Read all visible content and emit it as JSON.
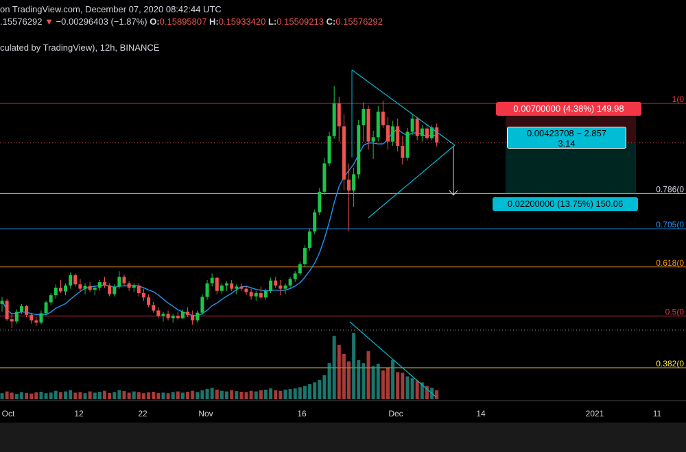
{
  "header": {
    "line1": "on TradingView.com, December 07, 2020 08:42:44 UTC",
    "price": ".15576292",
    "change": "−0.00296403 (−1.87%)",
    "o_label": "O:",
    "o_value": "0.15895807",
    "h_label": "H:",
    "h_value": "0.15933420",
    "l_label": "L:",
    "l_value": "0.15509213",
    "c_label": "C:",
    "c_value": "0.15576292",
    "line3": "culated by TradingView), 12h, BINANCE"
  },
  "position": {
    "stop_label": "0.00700000 (4.38%) 149.98",
    "rr_line1": "0.00423708 ~ 2.857",
    "rr_line2": "3.14",
    "target_label": "0.02200000 (13.75%) 150.06"
  },
  "fib_levels": [
    {
      "label": "1(0",
      "price": 0.163,
      "color": "#f23645"
    },
    {
      "label": "0.786(0",
      "price": 0.1465,
      "color": "#d1d4dc"
    },
    {
      "label": "0.705(0",
      "price": 0.14,
      "color": "#2196f3"
    },
    {
      "label": "0.618(0",
      "price": 0.133,
      "color": "#ff9800"
    },
    {
      "label": "0.5(0",
      "price": 0.124,
      "color": "#f23645"
    },
    {
      "label": "0.382(0",
      "price": 0.1145,
      "color": "#ffeb3b"
    }
  ],
  "colors": {
    "up": "#26a69a",
    "up_candle": "#1bc44a",
    "down": "#ef5350",
    "ma": "#2196f3",
    "triangle": "#00bcd4"
  },
  "chart_data": {
    "type": "candlestick",
    "interval": "12h",
    "exchange": "BINANCE",
    "x_ticks": [
      "Oct",
      "12",
      "22",
      "Nov",
      "16",
      "Dec",
      "14",
      "2021",
      "11"
    ],
    "y_range": [
      0.11,
      0.17
    ],
    "current_price": 0.15576292,
    "series": [
      {
        "name": "candles",
        "ohlc": [
          [
            0.1262,
            0.1275,
            0.1248,
            0.1268
          ],
          [
            0.1268,
            0.1272,
            0.1231,
            0.1234
          ],
          [
            0.1234,
            0.1244,
            0.1218,
            0.123
          ],
          [
            0.123,
            0.1252,
            0.1226,
            0.1248
          ],
          [
            0.1248,
            0.1262,
            0.1244,
            0.1258
          ],
          [
            0.1258,
            0.126,
            0.1238,
            0.1242
          ],
          [
            0.1242,
            0.1246,
            0.1226,
            0.1232
          ],
          [
            0.1232,
            0.1238,
            0.1222,
            0.1228
          ],
          [
            0.1228,
            0.125,
            0.1225,
            0.1245
          ],
          [
            0.1245,
            0.1268,
            0.1242,
            0.1265
          ],
          [
            0.1265,
            0.1282,
            0.126,
            0.1278
          ],
          [
            0.1278,
            0.1298,
            0.1272,
            0.1292
          ],
          [
            0.1292,
            0.1306,
            0.1282,
            0.1285
          ],
          [
            0.1285,
            0.13,
            0.1278,
            0.1296
          ],
          [
            0.1296,
            0.132,
            0.129,
            0.1315
          ],
          [
            0.1315,
            0.1318,
            0.1294,
            0.1298
          ],
          [
            0.1298,
            0.1308,
            0.1286,
            0.129
          ],
          [
            0.129,
            0.13,
            0.128,
            0.1295
          ],
          [
            0.1295,
            0.1302,
            0.1284,
            0.1288
          ],
          [
            0.1288,
            0.1296,
            0.1278,
            0.1292
          ],
          [
            0.1292,
            0.1306,
            0.1286,
            0.1302
          ],
          [
            0.1302,
            0.1312,
            0.1292,
            0.1296
          ],
          [
            0.1296,
            0.13,
            0.1276,
            0.128
          ],
          [
            0.128,
            0.1298,
            0.1276,
            0.1294
          ],
          [
            0.1294,
            0.1322,
            0.129,
            0.1312
          ],
          [
            0.1312,
            0.1316,
            0.1296,
            0.13
          ],
          [
            0.13,
            0.1304,
            0.1286,
            0.1292
          ],
          [
            0.1292,
            0.13,
            0.1284,
            0.1296
          ],
          [
            0.1296,
            0.13,
            0.1276,
            0.1282
          ],
          [
            0.1282,
            0.129,
            0.1268,
            0.1274
          ],
          [
            0.1274,
            0.128,
            0.1256,
            0.126
          ],
          [
            0.126,
            0.1266,
            0.1246,
            0.125
          ],
          [
            0.125,
            0.1256,
            0.1236,
            0.124
          ],
          [
            0.124,
            0.1248,
            0.123,
            0.1244
          ],
          [
            0.1244,
            0.125,
            0.1232,
            0.1236
          ],
          [
            0.1236,
            0.1244,
            0.1228,
            0.124
          ],
          [
            0.124,
            0.1248,
            0.1232,
            0.1236
          ],
          [
            0.1236,
            0.1252,
            0.1234,
            0.1248
          ],
          [
            0.1248,
            0.1256,
            0.1238,
            0.1242
          ],
          [
            0.1242,
            0.125,
            0.1224,
            0.1232
          ],
          [
            0.1232,
            0.125,
            0.1228,
            0.1246
          ],
          [
            0.1246,
            0.128,
            0.1242,
            0.1275
          ],
          [
            0.1275,
            0.1306,
            0.127,
            0.13
          ],
          [
            0.13,
            0.1318,
            0.1294,
            0.131
          ],
          [
            0.131,
            0.1312,
            0.128,
            0.1286
          ],
          [
            0.1286,
            0.13,
            0.128,
            0.1296
          ],
          [
            0.1296,
            0.1304,
            0.1286,
            0.13
          ],
          [
            0.13,
            0.1306,
            0.1286,
            0.129
          ],
          [
            0.129,
            0.1298,
            0.128,
            0.1294
          ],
          [
            0.1294,
            0.13,
            0.1286,
            0.129
          ],
          [
            0.129,
            0.1296,
            0.1278,
            0.1284
          ],
          [
            0.1284,
            0.129,
            0.127,
            0.1276
          ],
          [
            0.1276,
            0.1286,
            0.1268,
            0.1282
          ],
          [
            0.1282,
            0.1294,
            0.127,
            0.1274
          ],
          [
            0.1274,
            0.129,
            0.127,
            0.1286
          ],
          [
            0.1286,
            0.131,
            0.1282,
            0.1305
          ],
          [
            0.1305,
            0.1312,
            0.1292,
            0.1296
          ],
          [
            0.1296,
            0.1306,
            0.1278,
            0.129
          ],
          [
            0.129,
            0.13,
            0.128,
            0.1296
          ],
          [
            0.1296,
            0.1312,
            0.1292,
            0.1308
          ],
          [
            0.1308,
            0.1322,
            0.1302,
            0.1318
          ],
          [
            0.1318,
            0.134,
            0.1314,
            0.1335
          ],
          [
            0.1335,
            0.137,
            0.133,
            0.1365
          ],
          [
            0.1365,
            0.14,
            0.136,
            0.1395
          ],
          [
            0.1395,
            0.1435,
            0.139,
            0.143
          ],
          [
            0.143,
            0.1475,
            0.1425,
            0.1468
          ],
          [
            0.1468,
            0.153,
            0.1462,
            0.152
          ],
          [
            0.152,
            0.1578,
            0.1515,
            0.157
          ],
          [
            0.157,
            0.1662,
            0.1565,
            0.163
          ],
          [
            0.163,
            0.1642,
            0.156,
            0.1588
          ],
          [
            0.1588,
            0.161,
            0.147,
            0.149
          ],
          [
            0.149,
            0.152,
            0.1396,
            0.147
          ],
          [
            0.147,
            0.1512,
            0.144,
            0.15
          ],
          [
            0.15,
            0.16,
            0.1492,
            0.159
          ],
          [
            0.159,
            0.1632,
            0.156,
            0.162
          ],
          [
            0.162,
            0.1626,
            0.1545,
            0.156
          ],
          [
            0.156,
            0.158,
            0.1528,
            0.1568
          ],
          [
            0.1568,
            0.1625,
            0.156,
            0.1615
          ],
          [
            0.1615,
            0.1635,
            0.1585,
            0.159
          ],
          [
            0.159,
            0.1605,
            0.1545,
            0.156
          ],
          [
            0.156,
            0.1598,
            0.1552,
            0.1588
          ],
          [
            0.1588,
            0.1602,
            0.1542,
            0.1552
          ],
          [
            0.1552,
            0.157,
            0.1518,
            0.153
          ],
          [
            0.153,
            0.1585,
            0.1525,
            0.1578
          ],
          [
            0.1578,
            0.161,
            0.1572,
            0.1602
          ],
          [
            0.1602,
            0.1605,
            0.1562,
            0.157
          ],
          [
            0.157,
            0.159,
            0.156,
            0.1584
          ],
          [
            0.1584,
            0.1592,
            0.1562,
            0.1566
          ],
          [
            0.1566,
            0.159,
            0.1562,
            0.1586
          ],
          [
            0.1586,
            0.1593,
            0.1551,
            0.1558
          ]
        ]
      },
      {
        "name": "ma",
        "values": []
      }
    ],
    "volume": [
      20,
      26,
      22,
      18,
      24,
      21,
      19,
      23,
      25,
      20,
      22,
      28,
      24,
      26,
      30,
      22,
      24,
      20,
      26,
      22,
      25,
      28,
      21,
      24,
      30,
      27,
      22,
      26,
      24,
      20,
      23,
      25,
      21,
      22,
      20,
      24,
      26,
      22,
      25,
      28,
      24,
      30,
      34,
      38,
      32,
      28,
      26,
      30,
      27,
      25,
      24,
      28,
      26,
      30,
      32,
      36,
      30,
      28,
      32,
      34,
      36,
      40,
      44,
      50,
      56,
      64,
      80,
      120,
      210,
      180,
      150,
      126,
      220,
      130,
      120,
      160,
      110,
      118,
      96,
      104,
      130,
      90,
      88,
      76,
      70,
      62,
      56,
      44,
      38,
      30
    ]
  }
}
